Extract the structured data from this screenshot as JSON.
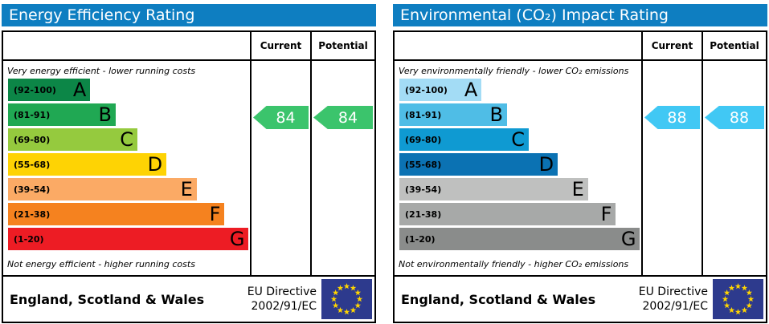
{
  "colors": {
    "header_bg": "#0e7ec1",
    "header_text": "#ffffff",
    "border": "#000000",
    "eu_flag_bg": "#2d3a8d",
    "eu_flag_star": "#ffd500"
  },
  "panels": [
    {
      "title": "Energy Efficiency Rating",
      "col_current": "Current",
      "col_potential": "Potential",
      "top_note": "Very energy efficient - lower running costs",
      "bottom_note": "Not energy efficient - higher running costs",
      "bands": [
        {
          "range": "(92-100)",
          "letter": "A",
          "color": "#0c8647",
          "width_pct": 34
        },
        {
          "range": "(81-91)",
          "letter": "B",
          "color": "#20a853",
          "width_pct": 44.5
        },
        {
          "range": "(69-80)",
          "letter": "C",
          "color": "#95ca3e",
          "width_pct": 53.5
        },
        {
          "range": "(55-68)",
          "letter": "D",
          "color": "#fed304",
          "width_pct": 65.5
        },
        {
          "range": "(39-54)",
          "letter": "E",
          "color": "#fbaa65",
          "width_pct": 78
        },
        {
          "range": "(21-38)",
          "letter": "F",
          "color": "#f5821f",
          "width_pct": 89.5
        },
        {
          "range": "(1-20)",
          "letter": "G",
          "color": "#ed1c24",
          "width_pct": 99.5
        }
      ],
      "current": {
        "value": "84",
        "color": "#3bc46c"
      },
      "potential": {
        "value": "84",
        "color": "#3bc46c"
      },
      "footer_region": "England, Scotland & Wales",
      "footer_directive_line1": "EU Directive",
      "footer_directive_line2": "2002/91/EC"
    },
    {
      "title": "Environmental (CO₂) Impact Rating",
      "col_current": "Current",
      "col_potential": "Potential",
      "top_note": "Very environmentally friendly - lower CO₂ emissions",
      "bottom_note": "Not environmentally friendly - higher CO₂ emissions",
      "bands": [
        {
          "range": "(92-100)",
          "letter": "A",
          "color": "#a3dcf5",
          "width_pct": 34
        },
        {
          "range": "(81-91)",
          "letter": "B",
          "color": "#4fbde6",
          "width_pct": 44.5
        },
        {
          "range": "(69-80)",
          "letter": "C",
          "color": "#0f9ad2",
          "width_pct": 53.5
        },
        {
          "range": "(55-68)",
          "letter": "D",
          "color": "#0b72b3",
          "width_pct": 65.5
        },
        {
          "range": "(39-54)",
          "letter": "E",
          "color": "#bfc0bf",
          "width_pct": 78
        },
        {
          "range": "(21-38)",
          "letter": "F",
          "color": "#a7a9a8",
          "width_pct": 89.5
        },
        {
          "range": "(1-20)",
          "letter": "G",
          "color": "#8a8c8b",
          "width_pct": 99.5
        }
      ],
      "current": {
        "value": "88",
        "color": "#41c8f4"
      },
      "potential": {
        "value": "88",
        "color": "#41c8f4"
      },
      "footer_region": "England, Scotland & Wales",
      "footer_directive_line1": "EU Directive",
      "footer_directive_line2": "2002/91/EC"
    }
  ],
  "chart_data": [
    {
      "type": "bar",
      "title": "Energy Efficiency Rating",
      "categories": [
        "A",
        "B",
        "C",
        "D",
        "E",
        "F",
        "G"
      ],
      "band_ranges": [
        "92-100",
        "81-91",
        "69-80",
        "55-68",
        "39-54",
        "21-38",
        "1-20"
      ],
      "band_relative_widths_pct": [
        34,
        44.5,
        53.5,
        65.5,
        78,
        89.5,
        99.5
      ],
      "values": {
        "current": 84,
        "potential": 84
      },
      "current_band": "B",
      "potential_band": "B",
      "scale": [
        1,
        100
      ],
      "annotations": [
        "Very energy efficient - lower running costs",
        "Not energy efficient - higher running costs"
      ],
      "footer": "England, Scotland & Wales — EU Directive 2002/91/EC"
    },
    {
      "type": "bar",
      "title": "Environmental (CO₂) Impact Rating",
      "categories": [
        "A",
        "B",
        "C",
        "D",
        "E",
        "F",
        "G"
      ],
      "band_ranges": [
        "92-100",
        "81-91",
        "69-80",
        "55-68",
        "39-54",
        "21-38",
        "1-20"
      ],
      "band_relative_widths_pct": [
        34,
        44.5,
        53.5,
        65.5,
        78,
        89.5,
        99.5
      ],
      "values": {
        "current": 88,
        "potential": 88
      },
      "current_band": "B",
      "potential_band": "B",
      "scale": [
        1,
        100
      ],
      "annotations": [
        "Very environmentally friendly - lower CO₂ emissions",
        "Not environmentally friendly - higher CO₂ emissions"
      ],
      "footer": "England, Scotland & Wales — EU Directive 2002/91/EC"
    }
  ]
}
